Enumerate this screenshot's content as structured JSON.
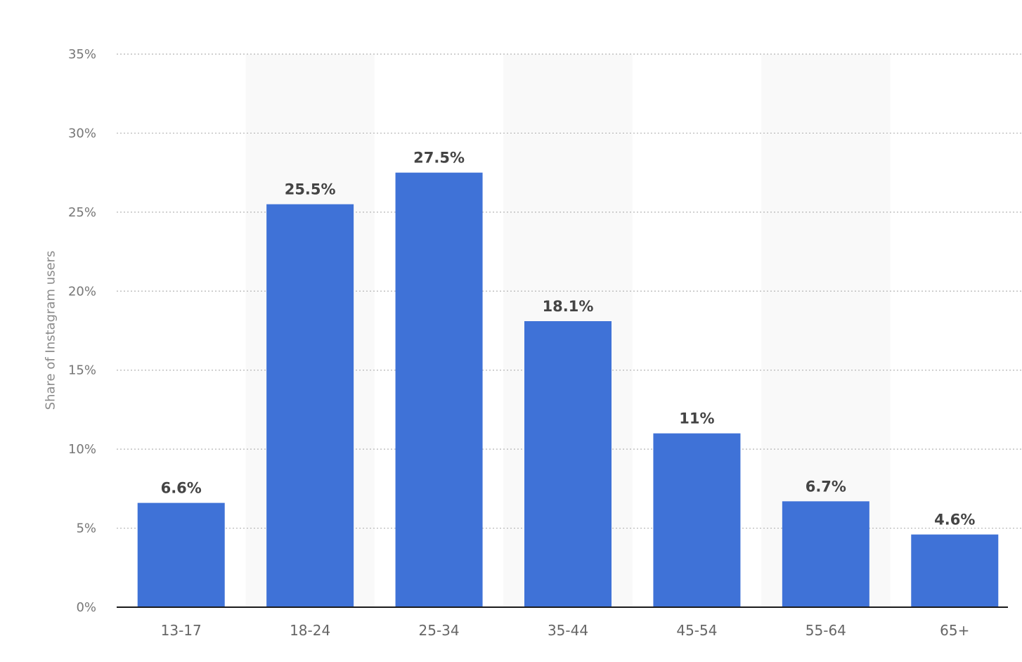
{
  "chart_data": {
    "type": "bar",
    "categories": [
      "13-17",
      "18-24",
      "25-34",
      "35-44",
      "45-54",
      "55-64",
      "65+"
    ],
    "values": [
      6.6,
      25.5,
      27.5,
      18.1,
      11,
      6.7,
      4.6
    ],
    "value_labels": [
      "6.6%",
      "25.5%",
      "27.5%",
      "18.1%",
      "11%",
      "6.7%",
      "4.6%"
    ],
    "title": "",
    "xlabel": "",
    "ylabel": "Share of Instagram users",
    "ylim": [
      0,
      35
    ],
    "yticks": [
      0,
      5,
      10,
      15,
      20,
      25,
      30,
      35
    ],
    "ytick_labels": [
      "0%",
      "5%",
      "10%",
      "15%",
      "20%",
      "25%",
      "30%",
      "35%"
    ],
    "grid": true,
    "legend": "none",
    "colors": {
      "bar": "#3f72d7",
      "alt_band": "#f9f9f9",
      "gridline": "#b5b5b5",
      "axis": "#1a1a1a",
      "tick_text": "#777777",
      "value_text": "#444444"
    }
  }
}
